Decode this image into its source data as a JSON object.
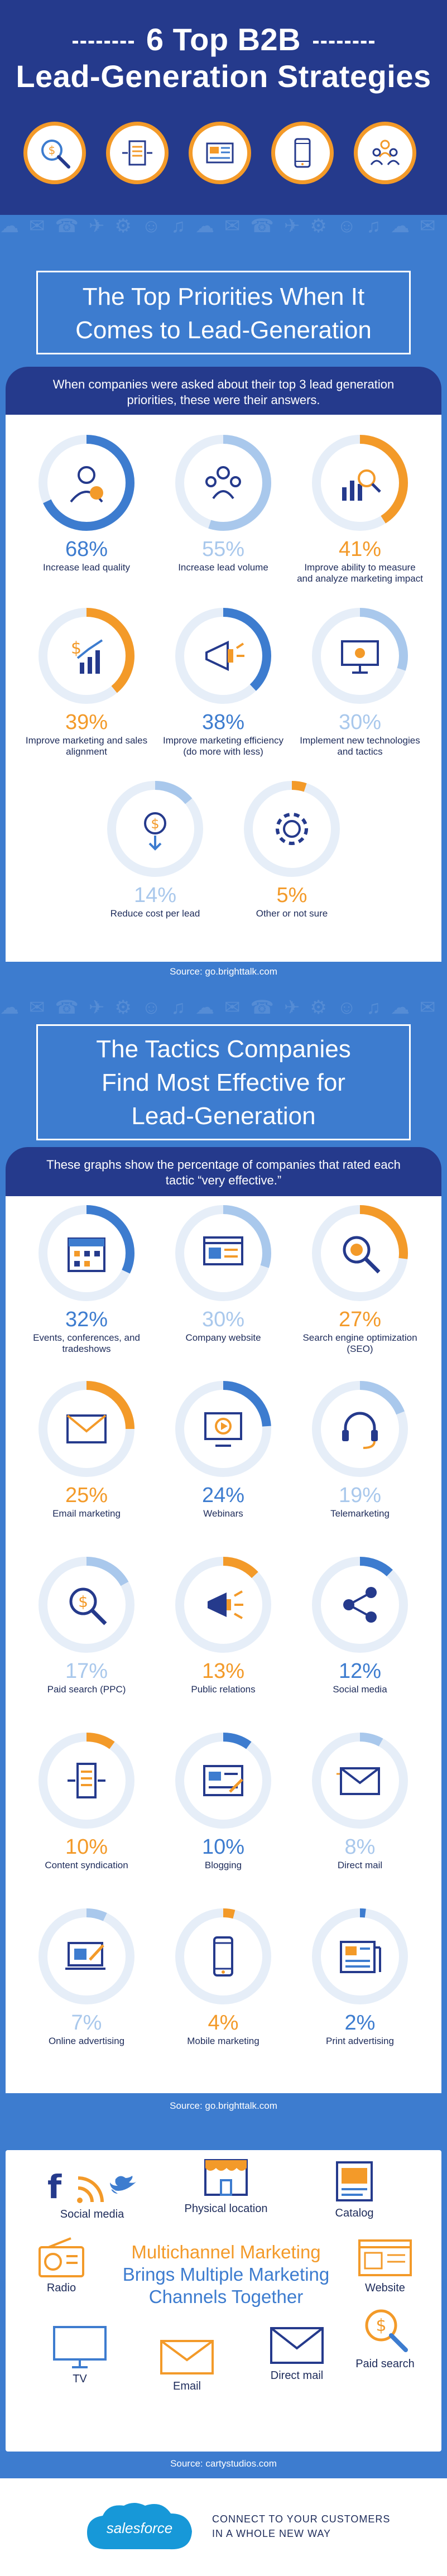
{
  "header": {
    "title_line1": "6 Top B2B",
    "title_line2": "Lead-Generation Strategies",
    "icons": [
      "search-dollar-icon",
      "content-syndication-icon",
      "newspaper-icon",
      "mobile-phone-icon",
      "audience-icon"
    ]
  },
  "section1": {
    "title_line1": "The Top Priorities When It",
    "title_line2": "Comes to Lead-Generation",
    "intro": "When companies were asked about their top 3 lead generation priorities, these were their answers.",
    "items": [
      {
        "pct": "68%",
        "value": 68,
        "label": "Increase lead quality",
        "icon": "quality-user-icon",
        "accent": "#3d7ccf"
      },
      {
        "pct": "55%",
        "value": 55,
        "label": "Increase lead volume",
        "icon": "group-icon",
        "accent": "#a9c8ec"
      },
      {
        "pct": "41%",
        "value": 41,
        "label": "Improve ability to measure and analyze marketing impact",
        "icon": "analyze-icon",
        "accent": "#f39a29"
      },
      {
        "pct": "39%",
        "value": 39,
        "label": "Improve marketing and sales alignment",
        "icon": "sales-chart-icon",
        "accent": "#f39a29"
      },
      {
        "pct": "38%",
        "value": 38,
        "label": "Improve marketing efficiency (do more with less)",
        "icon": "megaphone-icon",
        "accent": "#3d7ccf"
      },
      {
        "pct": "30%",
        "value": 30,
        "label": "Implement new technologies and tactics",
        "icon": "computer-icon",
        "accent": "#a9c8ec"
      },
      {
        "pct": "14%",
        "value": 14,
        "label": "Reduce cost per lead",
        "icon": "cost-down-icon",
        "accent": "#a9c8ec"
      },
      {
        "pct": "5%",
        "value": 5,
        "label": "Other or not sure",
        "icon": "gear-icon",
        "accent": "#f39a29"
      }
    ],
    "source": "Source: go.brighttalk.com"
  },
  "section2": {
    "title_line1": "The Tactics Companies",
    "title_line2": "Find Most Effective for",
    "title_line3": "Lead-Generation",
    "intro": "These graphs show the percentage of companies that rated each tactic “very effective.”",
    "items": [
      {
        "pct": "32%",
        "value": 32,
        "label": "Events, conferences, and tradeshows",
        "icon": "calendar-icon",
        "accent": "#3d7ccf"
      },
      {
        "pct": "30%",
        "value": 30,
        "label": "Company website",
        "icon": "website-icon",
        "accent": "#a9c8ec"
      },
      {
        "pct": "27%",
        "value": 27,
        "label": "Search engine optimization (SEO)",
        "icon": "seo-search-icon",
        "accent": "#f39a29"
      },
      {
        "pct": "25%",
        "value": 25,
        "label": "Email marketing",
        "icon": "email-icon",
        "accent": "#f39a29"
      },
      {
        "pct": "24%",
        "value": 24,
        "label": "Webinars",
        "icon": "webinar-icon",
        "accent": "#3d7ccf"
      },
      {
        "pct": "19%",
        "value": 19,
        "label": "Telemarketing",
        "icon": "headset-icon",
        "accent": "#a9c8ec"
      },
      {
        "pct": "17%",
        "value": 17,
        "label": "Paid search (PPC)",
        "icon": "paid-search-icon",
        "accent": "#a9c8ec"
      },
      {
        "pct": "13%",
        "value": 13,
        "label": "Public relations",
        "icon": "public-relations-icon",
        "accent": "#f39a29"
      },
      {
        "pct": "12%",
        "value": 12,
        "label": "Social media",
        "icon": "share-icon",
        "accent": "#3d7ccf"
      },
      {
        "pct": "10%",
        "value": 10,
        "label": "Content syndication",
        "icon": "content-syndication-icon",
        "accent": "#f39a29"
      },
      {
        "pct": "10%",
        "value": 10,
        "label": "Blogging",
        "icon": "blog-icon",
        "accent": "#3d7ccf"
      },
      {
        "pct": "8%",
        "value": 8,
        "label": "Direct mail",
        "icon": "direct-mail-icon",
        "accent": "#a9c8ec"
      },
      {
        "pct": "7%",
        "value": 7,
        "label": "Online advertising",
        "icon": "online-ad-icon",
        "accent": "#a9c8ec"
      },
      {
        "pct": "4%",
        "value": 4,
        "label": "Mobile marketing",
        "icon": "mobile-phone-icon",
        "accent": "#f39a29"
      },
      {
        "pct": "2%",
        "value": 2,
        "label": "Print advertising",
        "icon": "print-ad-icon",
        "accent": "#3d7ccf"
      }
    ],
    "source": "Source: go.brighttalk.com"
  },
  "section3": {
    "title_line1": "Multichannel Marketing",
    "title_line2": "Brings Multiple Marketing",
    "title_line3": "Channels Together",
    "channels": {
      "social": "Social media",
      "location": "Physical location",
      "catalog": "Catalog",
      "radio": "Radio",
      "website": "Website",
      "tv": "TV",
      "email": "Email",
      "direct_mail": "Direct mail",
      "paid_search": "Paid search"
    },
    "source": "Source: cartystudios.com"
  },
  "footer": {
    "brand": "salesforce",
    "tagline_line1": "CONNECT TO YOUR CUSTOMERS",
    "tagline_line2": "IN A WHOLE NEW WAY"
  },
  "colors": {
    "navy": "#253a8c",
    "blue": "#3d7ccf",
    "light_blue": "#a9c8ec",
    "orange": "#f39a29",
    "track": "#e6eef8"
  }
}
